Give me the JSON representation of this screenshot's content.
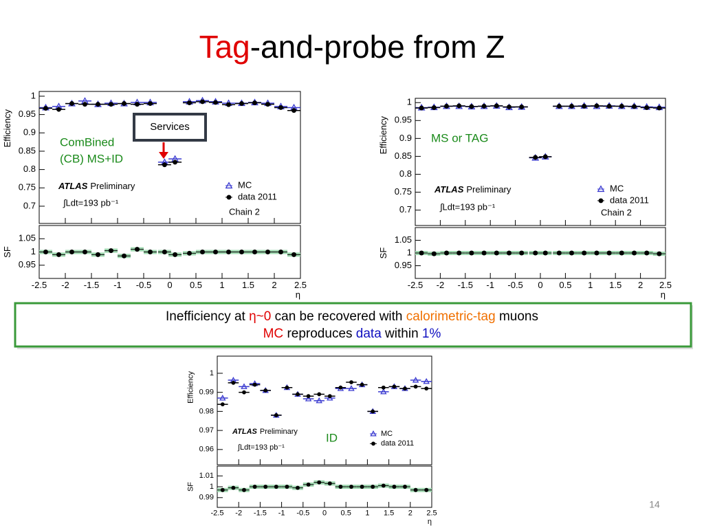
{
  "slide": {
    "title": [
      "Tag",
      "-and-probe from Z"
    ],
    "note": [
      [
        "Inefficiency at ",
        "η~0",
        " can be recovered with ",
        "calorimetric-tag",
        " muons"
      ],
      [
        "MC",
        " reproduces ",
        "data",
        " within ",
        "1%"
      ]
    ],
    "callout": "Services",
    "page": "14"
  },
  "chart_data": [
    {
      "type": "scatter",
      "annotations": [
        "ComBined",
        "(CB) MS+ID"
      ],
      "experiment": "ATLAS",
      "status": "Preliminary",
      "luminosity": "∫Ldt=193 pb⁻¹",
      "chain": "Chain 2",
      "xlabel": "η",
      "ylabel": "Efficiency",
      "xlim": [
        -2.5,
        2.5
      ],
      "xticks": [
        -2.5,
        -2,
        -1.5,
        -1,
        -0.5,
        0,
        0.5,
        1,
        1.5,
        2,
        2.5
      ],
      "ylim": [
        0.653,
        1.013
      ],
      "yticks": [
        0.7,
        0.75,
        0.8,
        0.85,
        0.9,
        0.95,
        1
      ],
      "x": [
        -2.375,
        -2.125,
        -1.875,
        -1.625,
        -1.375,
        -1.125,
        -0.875,
        -0.625,
        -0.375,
        -0.1,
        0.1,
        0.375,
        0.625,
        0.875,
        1.125,
        1.375,
        1.625,
        1.875,
        2.125,
        2.375
      ],
      "series": [
        {
          "name": "MC",
          "color": "#3a3ad0",
          "marker": "triangle",
          "values": [
            0.969,
            0.972,
            0.98,
            0.987,
            0.978,
            0.981,
            0.98,
            0.983,
            0.983,
            0.82,
            0.829,
            0.985,
            0.988,
            0.985,
            0.981,
            0.981,
            0.983,
            0.981,
            0.972,
            0.969
          ]
        },
        {
          "name": "data 2011",
          "color": "#000000",
          "marker": "circle",
          "values": [
            0.967,
            0.964,
            0.98,
            0.978,
            0.978,
            0.978,
            0.98,
            0.978,
            0.98,
            0.813,
            0.82,
            0.982,
            0.985,
            0.983,
            0.977,
            0.98,
            0.982,
            0.978,
            0.969,
            0.961
          ]
        }
      ],
      "ratio": {
        "ylabel": "SF",
        "ylim": [
          0.9,
          1.1
        ],
        "yticks": [
          0.95,
          1,
          1.05
        ],
        "values": [
          1.0,
          0.99,
          1.0,
          1.0,
          0.99,
          1.005,
          0.985,
          1.01,
          1.0,
          1.0,
          0.99,
          0.995,
          1.0,
          1.0,
          1.0,
          1.0,
          1.0,
          1.0,
          1.0,
          0.99
        ]
      }
    },
    {
      "type": "scatter",
      "annotations": [
        "MS or TAG"
      ],
      "experiment": "ATLAS",
      "status": "Preliminary",
      "luminosity": "∫Ldt=193 pb⁻¹",
      "chain": "Chain 2",
      "xlabel": "η",
      "ylabel": "Efficiency",
      "xlim": [
        -2.5,
        2.5
      ],
      "xticks": [
        -2.5,
        -2,
        -1.5,
        -1,
        -0.5,
        0,
        0.5,
        1,
        1.5,
        2,
        2.5
      ],
      "ylim": [
        0.657,
        1.012
      ],
      "yticks": [
        0.7,
        0.75,
        0.8,
        0.85,
        0.9,
        0.95,
        1
      ],
      "x": [
        -2.375,
        -2.125,
        -1.875,
        -1.625,
        -1.375,
        -1.125,
        -0.875,
        -0.625,
        -0.375,
        -0.1,
        0.1,
        0.375,
        0.625,
        0.875,
        1.125,
        1.375,
        1.625,
        1.875,
        2.125,
        2.375
      ],
      "series": [
        {
          "name": "MC",
          "color": "#3a3ad0",
          "marker": "triangle",
          "values": [
            0.986,
            0.987,
            0.99,
            0.99,
            0.989,
            0.99,
            0.991,
            0.987,
            0.988,
            0.846,
            0.849,
            0.99,
            0.99,
            0.991,
            0.99,
            0.991,
            0.99,
            0.99,
            0.988,
            0.987
          ]
        },
        {
          "name": "data 2011",
          "color": "#000000",
          "marker": "circle",
          "values": [
            0.985,
            0.986,
            0.99,
            0.991,
            0.989,
            0.99,
            0.991,
            0.988,
            0.988,
            0.847,
            0.849,
            0.99,
            0.99,
            0.99,
            0.991,
            0.99,
            0.99,
            0.989,
            0.986,
            0.985
          ]
        }
      ],
      "ratio": {
        "ylabel": "SF",
        "ylim": [
          0.9,
          1.1
        ],
        "yticks": [
          0.95,
          1,
          1.05
        ],
        "values": [
          1.0,
          0.997,
          1.0,
          1.0,
          1.0,
          1.0,
          1.0,
          1.0,
          1.0,
          1.0,
          1.0,
          1.0,
          1.0,
          1.0,
          1.0,
          1.0,
          1.0,
          1.0,
          1.0,
          0.997
        ]
      }
    },
    {
      "type": "scatter",
      "annotations": [
        "ID"
      ],
      "experiment": "ATLAS",
      "status": "Preliminary",
      "luminosity": "∫Ldt=193 pb⁻¹",
      "xlabel": "η",
      "ylabel": "Efficiency",
      "xlim": [
        -2.5,
        2.5
      ],
      "xticks": [
        -2.5,
        -2,
        -1.5,
        -1,
        -0.5,
        0,
        0.5,
        1,
        1.5,
        2,
        2.5
      ],
      "ylim": [
        0.952,
        1.009
      ],
      "yticks": [
        0.96,
        0.97,
        0.98,
        0.99,
        1
      ],
      "x": [
        -2.375,
        -2.125,
        -1.875,
        -1.625,
        -1.375,
        -1.125,
        -0.875,
        -0.625,
        -0.375,
        -0.125,
        0.125,
        0.375,
        0.625,
        0.875,
        1.125,
        1.375,
        1.625,
        1.875,
        2.125,
        2.375
      ],
      "series": [
        {
          "name": "MC",
          "color": "#3a3ad0",
          "marker": "triangle",
          "values": [
            0.987,
            0.9964,
            0.993,
            0.9946,
            0.991,
            0.978,
            0.9925,
            0.989,
            0.9866,
            0.9856,
            0.987,
            0.992,
            0.992,
            0.994,
            0.98,
            0.9903,
            0.993,
            0.992,
            0.9964,
            0.9957
          ]
        },
        {
          "name": "data 2011",
          "color": "#000000",
          "marker": "circle",
          "values": [
            0.9837,
            0.995,
            0.99,
            0.994,
            0.991,
            0.978,
            0.9925,
            0.989,
            0.988,
            0.989,
            0.988,
            0.9925,
            0.9953,
            0.994,
            0.98,
            0.9925,
            0.993,
            0.992,
            0.993,
            0.992
          ]
        }
      ],
      "ratio": {
        "ylabel": "SF",
        "ylim": [
          0.981,
          1.019
        ],
        "yticks": [
          0.99,
          1,
          1.01
        ],
        "values": [
          0.997,
          0.999,
          0.997,
          1.0,
          1.0,
          1.0,
          1.0,
          0.999,
          1.002,
          1.004,
          1.003,
          1.0,
          1.0,
          1.0,
          1.0,
          1.001,
          1.0,
          1.0,
          0.997,
          0.997
        ]
      }
    }
  ]
}
